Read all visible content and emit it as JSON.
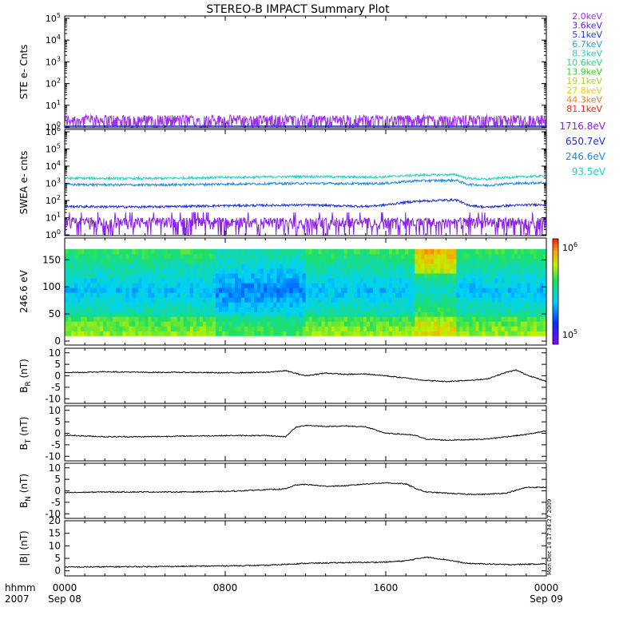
{
  "title": "STEREO-B IMPACT Summary Plot",
  "footer": {
    "row_label": "hhmm",
    "year": "2007",
    "x_ticks": [
      {
        "hhmm": "0000",
        "date": "Sep 08"
      },
      {
        "hhmm": "0800",
        "date": ""
      },
      {
        "hhmm": "1600",
        "date": ""
      },
      {
        "hhmm": "0000",
        "date": "Sep 09"
      }
    ]
  },
  "timestamp": "Mon Dec 14 17:34:27 2009",
  "ste_legend": [
    {
      "label": "2.0keV",
      "color": "#9b30e8"
    },
    {
      "label": "3.6keV",
      "color": "#5a1fd4"
    },
    {
      "label": "5.1keV",
      "color": "#1f3ff0"
    },
    {
      "label": "6.7keV",
      "color": "#16a8e8"
    },
    {
      "label": "8.3keV",
      "color": "#1ad7c8"
    },
    {
      "label": "10.6keV",
      "color": "#1ee07a"
    },
    {
      "label": "13.9keV",
      "color": "#32d21e"
    },
    {
      "label": "19.1keV",
      "color": "#b5d21a"
    },
    {
      "label": "27.8keV",
      "color": "#f0c814"
    },
    {
      "label": "44.3keV",
      "color": "#f08214"
    },
    {
      "label": "81.1keV",
      "color": "#e42a14"
    }
  ],
  "swea_legend": [
    {
      "label": "1716.8eV",
      "color": "#8a1fe6"
    },
    {
      "label": "650.7eV",
      "color": "#1f2fd8"
    },
    {
      "label": "246.6eV",
      "color": "#1a8ae6"
    },
    {
      "label": "93.5eV",
      "color": "#19d2c8"
    }
  ],
  "colorbar": {
    "label_top": "10",
    "label_top_exp": "6",
    "label_bottom": "10",
    "label_bottom_exp": "5"
  },
  "chart_data": [
    {
      "type": "line",
      "panel": "ste",
      "ylabel": "STE e- Cnts",
      "yscale": "log",
      "ylim": [
        1,
        100000
      ],
      "y_ticks": [
        "10^0",
        "10^1",
        "10^2",
        "10^3",
        "10^4",
        "10^5"
      ],
      "xlim": [
        0,
        24
      ],
      "x_unit": "hours from 2007 Sep 08 0000",
      "series": [
        {
          "name": "2.0keV",
          "level": 1.8,
          "noise_max": 3
        }
      ]
    },
    {
      "type": "line",
      "panel": "swea",
      "ylabel": "SWEA e- cnts",
      "yscale": "log",
      "ylim": [
        1,
        1000000
      ],
      "y_ticks": [
        "10^0",
        "10^1",
        "10^2",
        "10^3",
        "10^4",
        "10^5",
        "10^6"
      ],
      "xlim": [
        0,
        24
      ],
      "series": [
        {
          "name": "93.5eV",
          "x": [
            0,
            4,
            8,
            12,
            15,
            16,
            17.5,
            19.5,
            20,
            21,
            22,
            24
          ],
          "y": [
            2000,
            1900,
            2200,
            2500,
            2300,
            2400,
            3000,
            3200,
            2000,
            1700,
            2200,
            2700
          ]
        },
        {
          "name": "246.6eV",
          "x": [
            0,
            4,
            8,
            12,
            15,
            16,
            17.5,
            19.5,
            20,
            21,
            22,
            24
          ],
          "y": [
            850,
            800,
            900,
            1000,
            950,
            1000,
            1400,
            1500,
            900,
            750,
            950,
            1100
          ]
        },
        {
          "name": "650.7eV",
          "x": [
            0,
            4,
            8,
            12,
            15,
            16,
            17.5,
            19.5,
            20,
            21,
            22,
            24
          ],
          "y": [
            45,
            42,
            50,
            55,
            45,
            55,
            90,
            110,
            55,
            40,
            50,
            60
          ]
        },
        {
          "name": "1716.8eV",
          "level": 5,
          "noise_max": 20
        }
      ]
    },
    {
      "type": "heatmap",
      "panel": "pitch-angle",
      "ylabel": "246.6 eV",
      "ylim": [
        0,
        180
      ],
      "y_ticks": [
        0,
        50,
        100,
        150
      ],
      "xlim": [
        0,
        24
      ],
      "zscale": "log",
      "zlim": [
        100000,
        1000000
      ]
    },
    {
      "type": "line",
      "panel": "br",
      "ylabel": "B_R (nT)",
      "ylim": [
        -12,
        12
      ],
      "y_ticks": [
        -10,
        -5,
        0,
        5,
        10
      ],
      "xlim": [
        0,
        24
      ],
      "x": [
        0,
        1,
        2,
        4,
        6,
        8,
        10,
        11,
        12,
        13,
        14,
        15,
        16,
        17,
        18,
        19,
        20,
        21,
        22,
        22.5,
        23,
        24
      ],
      "y": [
        1.5,
        1.5,
        1.8,
        1.5,
        1.5,
        1.3,
        1.5,
        2.2,
        0,
        1.2,
        0.6,
        0.8,
        0,
        -1,
        -2,
        -2.5,
        -2,
        -1.5,
        1.5,
        2.5,
        0.5,
        -2.5
      ]
    },
    {
      "type": "line",
      "panel": "bt",
      "ylabel": "B_T (nT)",
      "ylim": [
        -12,
        12
      ],
      "y_ticks": [
        -10,
        -5,
        0,
        5,
        10
      ],
      "xlim": [
        0,
        24
      ],
      "x": [
        0,
        2,
        4,
        6,
        8,
        9,
        10,
        11,
        11.5,
        12,
        13,
        14,
        15,
        16,
        17,
        17.5,
        18,
        19,
        20,
        21,
        22,
        23,
        24
      ],
      "y": [
        -0.8,
        -1.5,
        -1.5,
        -1.2,
        -1.0,
        -1.0,
        -1.0,
        -1.5,
        2.5,
        3.5,
        3.0,
        3.2,
        2.8,
        0,
        -0.5,
        -1.0,
        -2.5,
        -3.0,
        -2.8,
        -2.5,
        -1.5,
        -0.5,
        1.0
      ]
    },
    {
      "type": "line",
      "panel": "bn",
      "ylabel": "B_N (nT)",
      "ylim": [
        -12,
        12
      ],
      "y_ticks": [
        -10,
        -5,
        0,
        5,
        10
      ],
      "xlim": [
        0,
        24
      ],
      "x": [
        0,
        2,
        4,
        6,
        8,
        10,
        11,
        11.5,
        12,
        13,
        14,
        15,
        16,
        17,
        17.5,
        18,
        19,
        20,
        21,
        22,
        23,
        24
      ],
      "y": [
        -0.8,
        -0.5,
        -0.5,
        -0.5,
        -0.3,
        0.5,
        0.8,
        2.5,
        2.8,
        2.0,
        2.2,
        3.0,
        3.5,
        3.0,
        1.0,
        -0.5,
        -1.0,
        -1.5,
        -1.5,
        -1.0,
        1.5,
        1.5
      ]
    },
    {
      "type": "line",
      "panel": "bmag",
      "ylabel": "|B| (nT)",
      "ylim": [
        -2,
        20
      ],
      "y_ticks": [
        0,
        5,
        10,
        15,
        20
      ],
      "xlim": [
        0,
        24
      ],
      "x": [
        0,
        2,
        4,
        6,
        8,
        10,
        12,
        14,
        16,
        17,
        18,
        19,
        20,
        22,
        24
      ],
      "y": [
        1.5,
        1.6,
        1.7,
        1.8,
        2.0,
        2.2,
        3.0,
        3.3,
        3.5,
        4.0,
        5.5,
        4.5,
        3.0,
        2.5,
        2.8
      ]
    }
  ]
}
